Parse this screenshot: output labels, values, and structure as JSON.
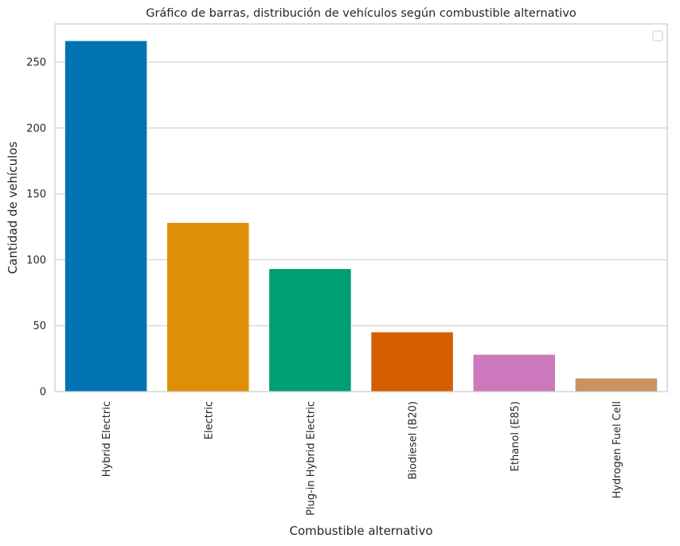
{
  "chart_data": {
    "type": "bar",
    "title": "Gráfico de barras, distribución de vehículos según combustible alternativo",
    "xlabel": "Combustible alternativo",
    "ylabel": "Cantidad de vehículos",
    "categories": [
      "Hybrid Electric",
      "Electric",
      "Plug-in Hybrid Electric",
      "Biodiesel (B20)",
      "Ethanol (E85)",
      "Hydrogen Fuel Cell"
    ],
    "values": [
      266,
      128,
      93,
      45,
      28,
      10
    ],
    "colors": [
      "#0173b2",
      "#de8f05",
      "#029e73",
      "#d55e00",
      "#cc78bc",
      "#ca9161"
    ],
    "ylim": [
      0,
      279
    ],
    "yticks": [
      0,
      50,
      100,
      150,
      200,
      250
    ],
    "grid": true,
    "legend": {
      "placement": "top-right",
      "entries": []
    }
  }
}
